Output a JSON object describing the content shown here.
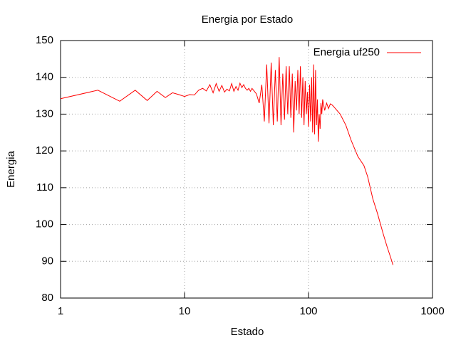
{
  "chart_data": {
    "type": "line",
    "title": "Energia por Estado",
    "x_label": "Estado",
    "y_label": "Energia",
    "xscale": "log",
    "grid": true,
    "legend": "top-right",
    "xlim": [
      1,
      1000
    ],
    "xticks": [
      1,
      10,
      100,
      1000
    ],
    "ylim": [
      80,
      150
    ],
    "yticks": [
      80,
      90,
      100,
      110,
      120,
      130,
      140,
      150
    ],
    "x": [
      1,
      2,
      3,
      4,
      5,
      6,
      7,
      8,
      9,
      10,
      11,
      12,
      13,
      14,
      15,
      16,
      17,
      18,
      19,
      20,
      21,
      22,
      23,
      24,
      25,
      26,
      27,
      28,
      29,
      30,
      31,
      32,
      33,
      34,
      35,
      36,
      38,
      40,
      42,
      44,
      46,
      48,
      50,
      52,
      54,
      56,
      58,
      60,
      62,
      64,
      66,
      68,
      70,
      72,
      74,
      76,
      78,
      80,
      82,
      84,
      86,
      88,
      90,
      92,
      94,
      96,
      98,
      100,
      102,
      104,
      106,
      108,
      110,
      112,
      114,
      116,
      118,
      120,
      122,
      124,
      126,
      128,
      130,
      135,
      140,
      145,
      150,
      155,
      160,
      180,
      200,
      220,
      250,
      280,
      300,
      330,
      360,
      400,
      430,
      460,
      480
    ],
    "series": [
      {
        "name": "Energia uf250",
        "color": "#ff0000",
        "values": [
          134.2,
          136.5,
          133.5,
          136.5,
          133.7,
          136.2,
          134.5,
          135.8,
          135.3,
          134.8,
          135.3,
          135.2,
          136.5,
          137,
          136.3,
          138,
          135.8,
          138.3,
          136.2,
          137.8,
          136,
          136.8,
          136.3,
          138.3,
          136.2,
          137.5,
          136.5,
          138.4,
          137.2,
          138,
          137,
          136.5,
          137,
          136.2,
          137,
          136.5,
          135.5,
          133,
          138,
          128,
          143.5,
          127.5,
          144,
          127,
          142,
          128,
          145.5,
          127,
          141,
          128.5,
          143,
          130,
          143,
          129,
          141,
          125,
          139,
          131,
          142,
          130,
          143,
          129,
          140,
          127,
          139,
          130,
          136,
          126.5,
          138,
          128,
          140,
          125,
          143.5,
          124.5,
          142,
          127,
          134,
          122.5,
          130,
          126,
          133,
          130,
          134,
          131,
          133,
          131.5,
          132.8,
          132.5,
          132,
          130,
          127,
          123,
          118.5,
          116,
          113,
          107,
          103,
          97.5,
          94,
          91,
          89
        ]
      }
    ]
  }
}
